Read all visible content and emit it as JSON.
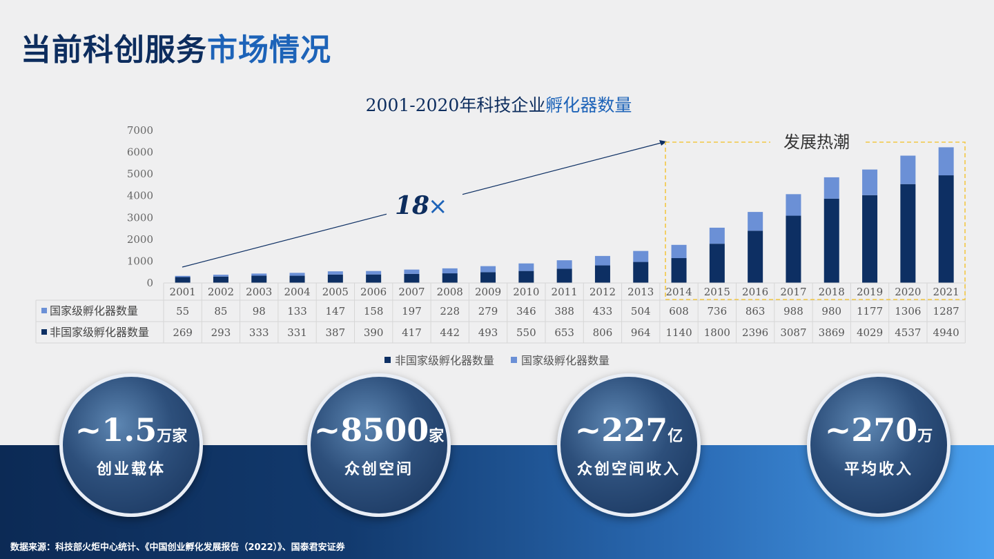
{
  "title": {
    "part1": "当前科创服务",
    "part2": "市场情况"
  },
  "chart_data": {
    "type": "bar",
    "stacked": true,
    "title": {
      "part1": "2001-2020年科技企业",
      "part2": "孵化器数量"
    },
    "categories": [
      "2001",
      "2002",
      "2003",
      "2004",
      "2005",
      "2006",
      "2007",
      "2008",
      "2009",
      "2010",
      "2011",
      "2012",
      "2013",
      "2014",
      "2015",
      "2016",
      "2017",
      "2018",
      "2019",
      "2020",
      "2021"
    ],
    "series": [
      {
        "name": "非国家级孵化器数量",
        "color": "#0d2f63",
        "values": [
          269,
          293,
          333,
          331,
          387,
          390,
          417,
          442,
          493,
          550,
          653,
          806,
          964,
          1140,
          1800,
          2396,
          3087,
          3869,
          4029,
          4537,
          4940
        ]
      },
      {
        "name": "国家级孵化器数量",
        "color": "#6b90d6",
        "values": [
          55,
          85,
          98,
          133,
          147,
          158,
          197,
          228,
          279,
          346,
          388,
          433,
          504,
          608,
          736,
          863,
          988,
          980,
          1177,
          1306,
          1287
        ]
      }
    ],
    "yticks": [
      "0",
      "1000",
      "2000",
      "3000",
      "4000",
      "5000",
      "6000",
      "7000"
    ],
    "ylim": [
      0,
      7000
    ],
    "table_rows": [
      {
        "label": "国家级孵化器数量",
        "series": 1
      },
      {
        "label": "非国家级孵化器数量",
        "series": 0
      }
    ],
    "annotations": {
      "multiplier": "18",
      "multiplier_symbol": "×",
      "highlight": "发展热潮"
    },
    "legend_order": [
      0,
      1
    ]
  },
  "stats": [
    {
      "value": "~1.5",
      "unit": "万家",
      "label": "创业载体"
    },
    {
      "value": "~8500",
      "unit": "家",
      "label": "众创空间"
    },
    {
      "value": "~227",
      "unit": "亿",
      "label": "众创空间收入"
    },
    {
      "value": "~270",
      "unit": "万",
      "label": "平均收入"
    }
  ],
  "footnote": "数据来源：科技部火炬中心统计、《中国创业孵化发展报告（2022）》、国泰君安证券"
}
